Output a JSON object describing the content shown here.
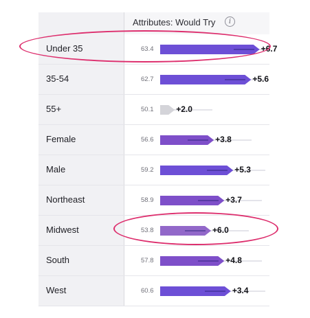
{
  "header": {
    "title": "Attributes: Would Try",
    "info_icon": "info-icon",
    "info_glyph": "i"
  },
  "rows": [
    {
      "label": "Under 35",
      "base": "63.4",
      "delta": "+6.7",
      "baseline": 63.4,
      "gain": 6.7,
      "style": "strong"
    },
    {
      "label": "35-54",
      "base": "62.7",
      "delta": "+5.6",
      "baseline": 62.7,
      "gain": 5.6,
      "style": "strong"
    },
    {
      "label": "55+",
      "base": "50.1",
      "delta": "+2.0",
      "baseline": 50.1,
      "gain": 2.0,
      "style": "neutral"
    },
    {
      "label": "Female",
      "base": "56.6",
      "delta": "+3.8",
      "baseline": 56.6,
      "gain": 3.8,
      "style": "medium"
    },
    {
      "label": "Male",
      "base": "59.2",
      "delta": "+5.3",
      "baseline": 59.2,
      "gain": 5.3,
      "style": "strong"
    },
    {
      "label": "Northeast",
      "base": "58.9",
      "delta": "+3.7",
      "baseline": 58.9,
      "gain": 3.7,
      "style": "medium"
    },
    {
      "label": "Midwest",
      "base": "53.8",
      "delta": "+6.0",
      "baseline": 53.8,
      "gain": 6.0,
      "style": "light"
    },
    {
      "label": "South",
      "base": "57.8",
      "delta": "+4.8",
      "baseline": 57.8,
      "gain": 4.8,
      "style": "medium"
    },
    {
      "label": "West",
      "base": "60.6",
      "delta": "+3.4",
      "baseline": 60.6,
      "gain": 3.4,
      "style": "strong"
    }
  ],
  "highlighted_rows": [
    "Under 35",
    "Midwest"
  ],
  "colors": {
    "strong": "#6d4fd6",
    "medium": "#7e4fc9",
    "light": "#9268c9",
    "neutral": "#d4d4d9",
    "highlight": "#dd2e6d",
    "label_bg": "#f1f1f4"
  }
}
